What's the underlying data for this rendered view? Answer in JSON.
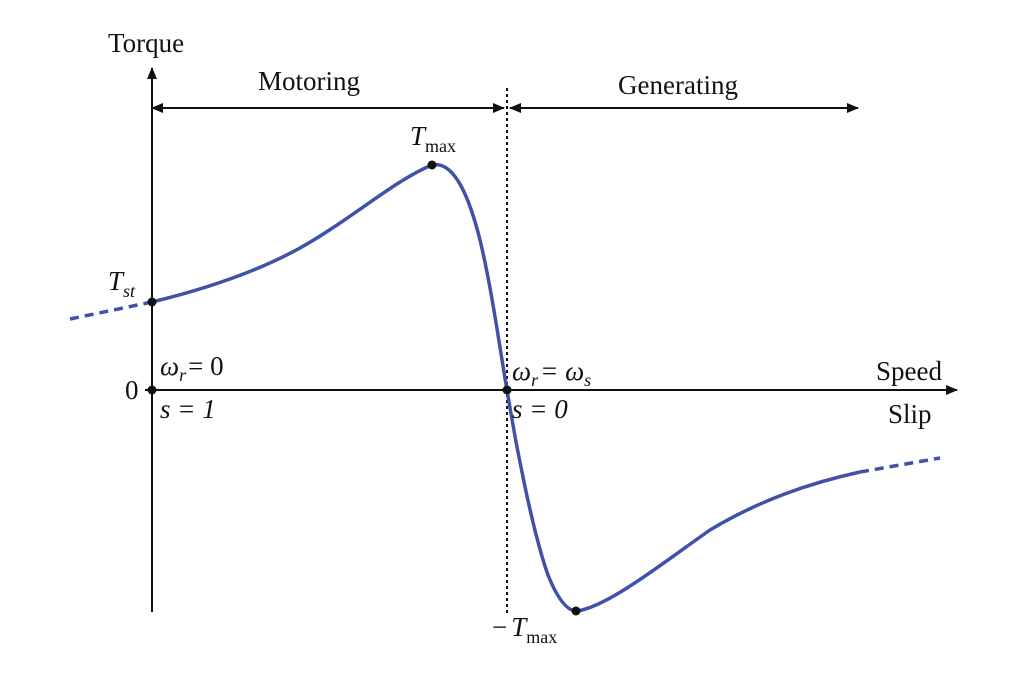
{
  "axes": {
    "y_label": "Torque",
    "x_label_top": "Speed",
    "x_label_bottom": "Slip",
    "origin": "0"
  },
  "regions": {
    "left": "Motoring",
    "right": "Generating"
  },
  "points": {
    "t_max": {
      "symbol": "T",
      "subscript": "max"
    },
    "t_st": {
      "symbol": "T",
      "subscript": "st"
    },
    "start_speed": {
      "symbol": "ω",
      "subscript": "r",
      "rest": "= 0"
    },
    "start_slip": "s = 1",
    "sync_speed": {
      "symbol": "ω",
      "subscript": "r",
      "rest": "= ω",
      "rest_subscript": "s"
    },
    "sync_slip": "s = 0",
    "neg_t_max": {
      "prefix": "−",
      "symbol": "T",
      "subscript": "max"
    }
  }
}
